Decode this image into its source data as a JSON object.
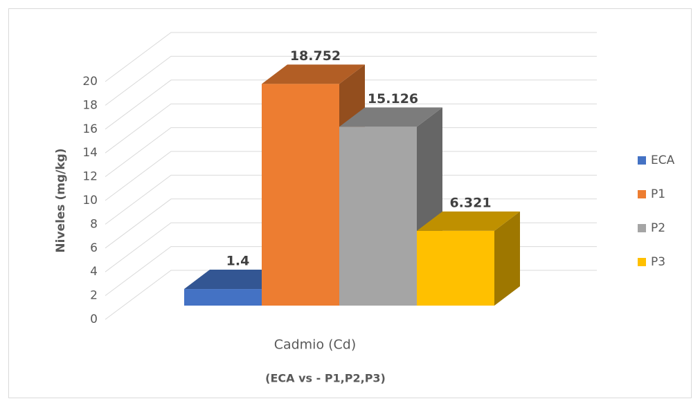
{
  "chart_data": {
    "type": "bar",
    "categories": [
      "Cadmio (Cd)"
    ],
    "subtitle": "(ECA vs - P1,P2,P3)",
    "y_label": "Niveles (mg/kg)",
    "series": [
      {
        "name": "ECA",
        "color": "#4472c4",
        "values": [
          1.4
        ]
      },
      {
        "name": "P1",
        "color": "#ed7d31",
        "values": [
          18.752
        ]
      },
      {
        "name": "P2",
        "color": "#a5a5a5",
        "values": [
          15.126
        ]
      },
      {
        "name": "P3",
        "color": "#ffc000",
        "values": [
          6.321
        ]
      }
    ],
    "ylim": [
      0,
      20
    ],
    "yticks": [
      0,
      2,
      4,
      6,
      8,
      10,
      12,
      14,
      16,
      18,
      20
    ],
    "grid": true,
    "legend": "right",
    "data_labels": true
  }
}
